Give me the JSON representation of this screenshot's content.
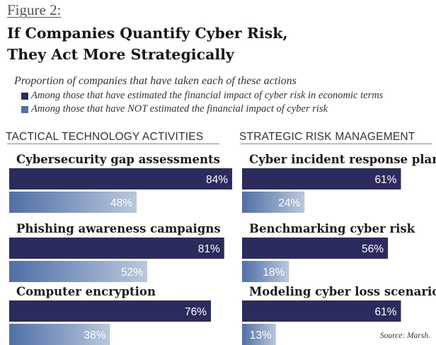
{
  "figure_label": "Figure 2:",
  "title_line1": "If Companies Quantify Cyber Risk,",
  "title_line2": "They Act More Strategically",
  "subtitle": "Proportion of companies that have taken each of these actions",
  "source": "Source: Marsh.",
  "colors": {
    "dark": "#2c2b5e",
    "light_start": "#4f6fa7",
    "light_end": "#b9c8dc"
  },
  "chart_data": {
    "type": "bar",
    "orientation": "horizontal",
    "value_format": "percent",
    "xlim": [
      0,
      100
    ],
    "grid": false,
    "legend_position": "top-left",
    "series_names": [
      "Among those that have estimated the financial impact of cyber risk in economic terms",
      "Among those that have NOT estimated the financial impact of cyber risk"
    ],
    "panels": [
      {
        "title": "TACTICAL TECHNOLOGY ACTIVITIES",
        "categories": [
          "Cybersecurity gap assessments",
          "Phishing awareness campaigns",
          "Computer encryption"
        ],
        "series": [
          {
            "name": "Among those that have estimated the financial impact of cyber risk in economic terms",
            "values": [
              84,
              81,
              76
            ]
          },
          {
            "name": "Among those that have NOT estimated the financial impact of cyber risk",
            "values": [
              48,
              52,
              38
            ]
          }
        ]
      },
      {
        "title": "STRATEGIC RISK MANAGEMENT",
        "categories": [
          "Cyber incident response plans",
          "Benchmarking cyber risk",
          "Modeling cyber loss scenarios"
        ],
        "series": [
          {
            "name": "Among those that have estimated the financial impact of cyber risk in economic terms",
            "values": [
              61,
              56,
              61
            ]
          },
          {
            "name": "Among those that have NOT estimated the financial impact of cyber risk",
            "values": [
              24,
              18,
              13
            ]
          }
        ]
      }
    ]
  }
}
